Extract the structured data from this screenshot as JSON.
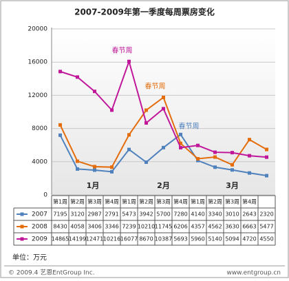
{
  "chart_data": {
    "type": "line",
    "title": "2007-2009年第一季度每周票房变化",
    "categories": [
      "第1周",
      "第2周",
      "第3周",
      "第4周",
      "第1周",
      "第2周",
      "第3周",
      "第4周",
      "第1周",
      "第2周",
      "第3周",
      "第4周",
      null
    ],
    "month_labels": [
      "1月",
      "2月",
      "3月"
    ],
    "series": [
      {
        "name": "2007",
        "color": "#4f81bd",
        "values": [
          7195,
          3120,
          2987,
          2791,
          5473,
          3942,
          5700,
          7280,
          4140,
          3340,
          3010,
          2643,
          2320
        ]
      },
      {
        "name": "2008",
        "color": "#e46c0a",
        "values": [
          8430,
          4058,
          3406,
          3346,
          7239,
          10210,
          11745,
          6206,
          4357,
          4562,
          3630,
          6663,
          5477
        ]
      },
      {
        "name": "2009",
        "color": "#c0179a",
        "values": [
          14865,
          14199,
          12471,
          10216,
          16077,
          8670,
          10387,
          5693,
          5960,
          5140,
          5094,
          4720,
          4550
        ]
      }
    ],
    "annotations": [
      "春节周",
      "春节周",
      "春节周"
    ],
    "ylim": [
      0,
      20000
    ],
    "yticks": [
      0,
      4000,
      8000,
      12000,
      16000,
      20000
    ],
    "grid": true,
    "unit": "单位：万元",
    "copyright": "© 2009.4 艺恩EntGroup Inc.",
    "website": "www.entgroup.cn"
  }
}
